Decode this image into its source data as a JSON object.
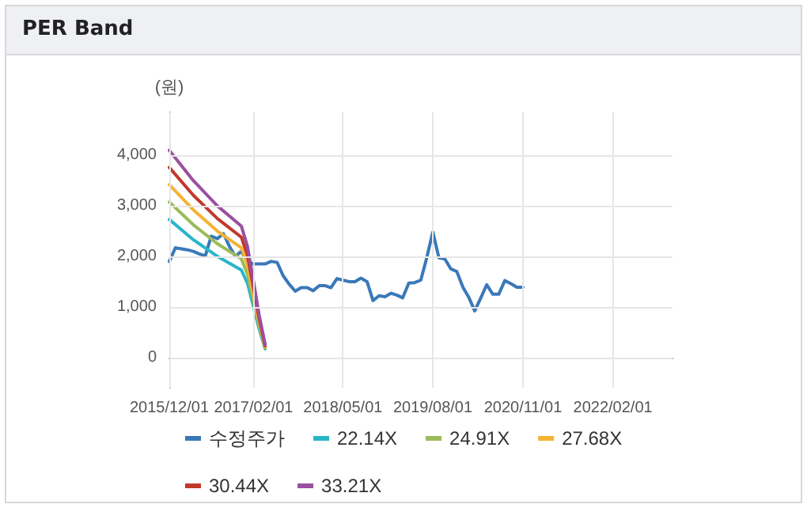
{
  "chart_data": {
    "type": "line",
    "title": "PER Band",
    "ylabel": "(원)",
    "xlim": [
      "2015-12-01",
      "2022-12-01"
    ],
    "xticks": [
      {
        "value": "2015-12-01",
        "label": "2015/12/01"
      },
      {
        "value": "2017-02-01",
        "label": "2017/02/01"
      },
      {
        "value": "2018-05-01",
        "label": "2018/05/01"
      },
      {
        "value": "2019-08-01",
        "label": "2019/08/01"
      },
      {
        "value": "2020-11-01",
        "label": "2020/11/01"
      },
      {
        "value": "2022-02-01",
        "label": "2022/02/01"
      }
    ],
    "ylim": [
      -600,
      4850
    ],
    "yticks": [
      {
        "value": 0,
        "label": "0"
      },
      {
        "value": 1000,
        "label": "1,000"
      },
      {
        "value": 2000,
        "label": "2,000"
      },
      {
        "value": 3000,
        "label": "3,000"
      },
      {
        "value": 4000,
        "label": "4,000"
      }
    ],
    "grid": true,
    "legend": "bottom",
    "marker": "none",
    "line_style": "solid",
    "series": [
      {
        "name": "수정주가",
        "color": "#3a78b9",
        "x": [
          "2015-12",
          "2016-01",
          "2016-02",
          "2016-03",
          "2016-04",
          "2016-05",
          "2016-06",
          "2016-07",
          "2016-08",
          "2016-09",
          "2016-10",
          "2016-11",
          "2016-12",
          "2017-01",
          "2017-02",
          "2017-03",
          "2017-04",
          "2017-05",
          "2017-06",
          "2017-07",
          "2017-08",
          "2017-09",
          "2017-10",
          "2017-11",
          "2017-12",
          "2018-01",
          "2018-02",
          "2018-03",
          "2018-04",
          "2018-05",
          "2018-06",
          "2018-07",
          "2018-08",
          "2018-09",
          "2018-10",
          "2018-11",
          "2018-12",
          "2019-01",
          "2019-02",
          "2019-03",
          "2019-04",
          "2019-05",
          "2019-06",
          "2019-07",
          "2019-08",
          "2019-09",
          "2019-10",
          "2019-11",
          "2019-12",
          "2020-01",
          "2020-02",
          "2020-03",
          "2020-04",
          "2020-05",
          "2020-06",
          "2020-07",
          "2020-08",
          "2020-09",
          "2020-10",
          "2020-11"
        ],
        "values": [
          1900,
          2170,
          2150,
          2130,
          2100,
          2050,
          2010,
          2400,
          2350,
          2450,
          2200,
          2000,
          2100,
          1900,
          1850,
          1850,
          1850,
          1900,
          1880,
          1620,
          1450,
          1310,
          1380,
          1380,
          1320,
          1420,
          1420,
          1380,
          1560,
          1530,
          1500,
          1500,
          1570,
          1500,
          1125,
          1220,
          1200,
          1270,
          1230,
          1180,
          1470,
          1480,
          1530,
          1970,
          2480,
          1970,
          1950,
          1750,
          1700,
          1390,
          1180,
          920,
          1180,
          1440,
          1250,
          1250,
          1520,
          1460,
          1390,
          1390
        ]
      },
      {
        "name": "22.14X",
        "color": "#2ab5c9",
        "x": [
          "2015-12",
          "2016-04",
          "2016-08",
          "2016-12",
          "2017-01",
          "2017-02",
          "2017-03",
          "2017-04"
        ],
        "values": [
          2730,
          2330,
          2000,
          1730,
          1470,
          1000,
          570,
          170
        ]
      },
      {
        "name": "24.91X",
        "color": "#9bbb59",
        "x": [
          "2015-12",
          "2016-04",
          "2016-08",
          "2016-12",
          "2017-01",
          "2017-02",
          "2017-03",
          "2017-04"
        ],
        "values": [
          3075,
          2625,
          2250,
          1950,
          1650,
          1125,
          640,
          190
        ]
      },
      {
        "name": "27.68X",
        "color": "#f5b335",
        "x": [
          "2015-12",
          "2016-04",
          "2016-08",
          "2016-12",
          "2017-01",
          "2017-02",
          "2017-03",
          "2017-04"
        ],
        "values": [
          3420,
          2920,
          2500,
          2170,
          1830,
          1250,
          710,
          210
        ]
      },
      {
        "name": "30.44X",
        "color": "#c0392b",
        "x": [
          "2015-12",
          "2016-04",
          "2016-08",
          "2016-12",
          "2017-01",
          "2017-02",
          "2017-03",
          "2017-04"
        ],
        "values": [
          3760,
          3210,
          2750,
          2380,
          2020,
          1375,
          780,
          230
        ]
      },
      {
        "name": "33.21X",
        "color": "#9b4fa0",
        "x": [
          "2015-12",
          "2016-04",
          "2016-08",
          "2016-12",
          "2017-01",
          "2017-02",
          "2017-03",
          "2017-04"
        ],
        "values": [
          4100,
          3500,
          3000,
          2600,
          2200,
          1500,
          850,
          250
        ]
      }
    ]
  }
}
